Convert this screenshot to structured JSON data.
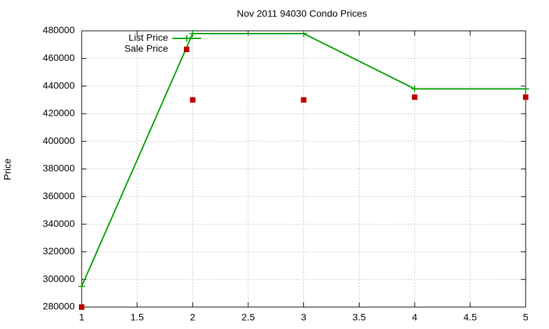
{
  "chart_data": {
    "type": "line",
    "title": "Nov 2011 94030 Condo Prices",
    "y_label": "Price",
    "x": [
      1,
      2,
      3,
      4,
      5
    ],
    "series": [
      {
        "name": "List Price",
        "color": "#00a000",
        "mode": "lines+markers",
        "marker": "plus",
        "values": [
          295000,
          478000,
          478000,
          438000,
          438000
        ]
      },
      {
        "name": "Sale Price",
        "color": "#c00000",
        "mode": "markers",
        "marker": "square",
        "values": [
          280000,
          430000,
          430000,
          432000,
          432000
        ]
      }
    ],
    "xlim": [
      1,
      5
    ],
    "xticks": [
      1,
      1.5,
      2,
      2.5,
      3,
      3.5,
      4,
      4.5,
      5
    ],
    "ylim": [
      280000,
      480000
    ],
    "yticks": [
      280000,
      300000,
      320000,
      340000,
      360000,
      380000,
      400000,
      420000,
      440000,
      460000,
      480000
    ],
    "grid": true,
    "legend": "top-left"
  }
}
